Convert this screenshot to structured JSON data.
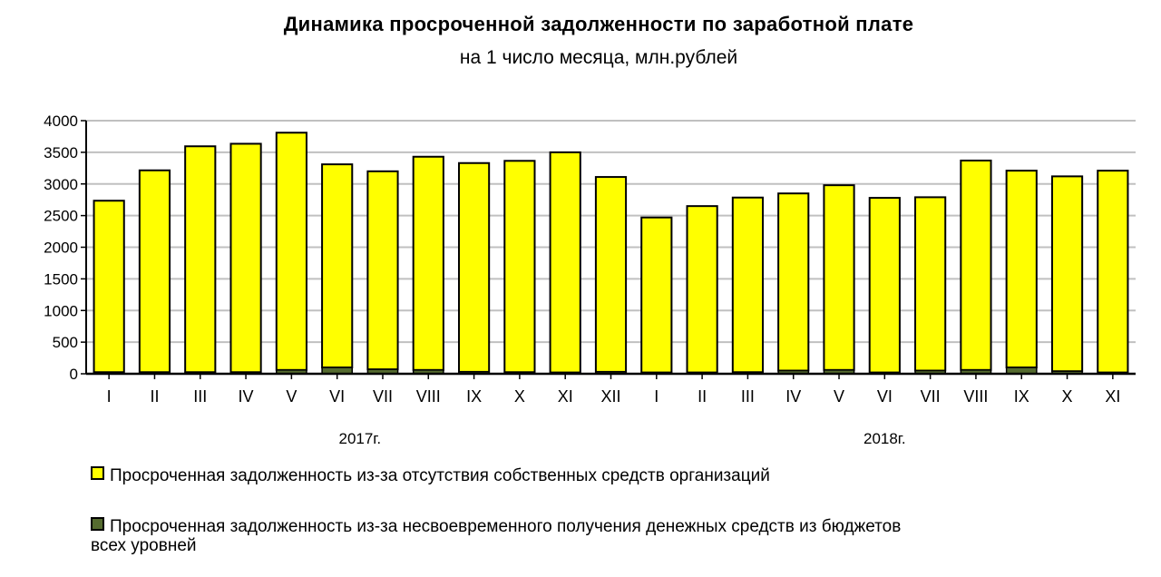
{
  "title": "Динамика просроченной задолженности по заработной плате",
  "subtitle": "на 1 число месяца, млн.рублей",
  "colors": {
    "series1": "#ffff00",
    "series2": "#556b2f",
    "background": "#ffffff",
    "grid": "#c0c0c0"
  },
  "legend": {
    "items": [
      {
        "label": "Просроченная задолженность из-за отсутствия собственных средств организаций",
        "color": "#ffff00"
      },
      {
        "label": "Просроченная задолженность из-за несвоевременного получения денежных средств из бюджетов",
        "label_cont": "всех уровней",
        "color": "#556b2f"
      }
    ]
  },
  "chart_data": {
    "type": "bar",
    "stacked": true,
    "categories": [
      "I",
      "II",
      "III",
      "IV",
      "V",
      "VI",
      "VII",
      "VIII",
      "IX",
      "X",
      "XI",
      "XII",
      "I",
      "II",
      "III",
      "IV",
      "V",
      "VI",
      "VII",
      "VIII",
      "IX",
      "X",
      "XI"
    ],
    "groups": [
      {
        "label": "2017г.",
        "categories": [
          "I",
          "II",
          "III",
          "IV",
          "V",
          "VI",
          "VII",
          "VIII",
          "IX",
          "X",
          "XI",
          "XII"
        ]
      },
      {
        "label": "2018г.",
        "categories": [
          "I",
          "II",
          "III",
          "IV",
          "V",
          "VI",
          "VII",
          "VIII",
          "IX",
          "X",
          "XI"
        ]
      }
    ],
    "series": [
      {
        "name": "Просроченная задолженность из-за отсутствия собственных средств организаций",
        "values": [
          2710,
          3190,
          3570,
          3610,
          3750,
          3210,
          3130,
          3370,
          3300,
          3340,
          3480,
          3080,
          2450,
          2630,
          2760,
          2800,
          2920,
          2760,
          2740,
          3310,
          3110,
          3080,
          3190
        ]
      },
      {
        "name": "Просроченная задолженность из-за несвоевременного получения денежных средств из бюджетов всех уровней",
        "values": [
          25,
          25,
          25,
          25,
          60,
          100,
          70,
          60,
          30,
          25,
          20,
          30,
          20,
          20,
          25,
          50,
          60,
          20,
          50,
          60,
          100,
          40,
          20
        ]
      }
    ],
    "yticks": [
      "0",
      "500",
      "1000",
      "1500",
      "2000",
      "2500",
      "3000",
      "3500",
      "4000"
    ],
    "ylim": [
      0,
      4000
    ],
    "grid": true,
    "legend_position": "bottom"
  }
}
